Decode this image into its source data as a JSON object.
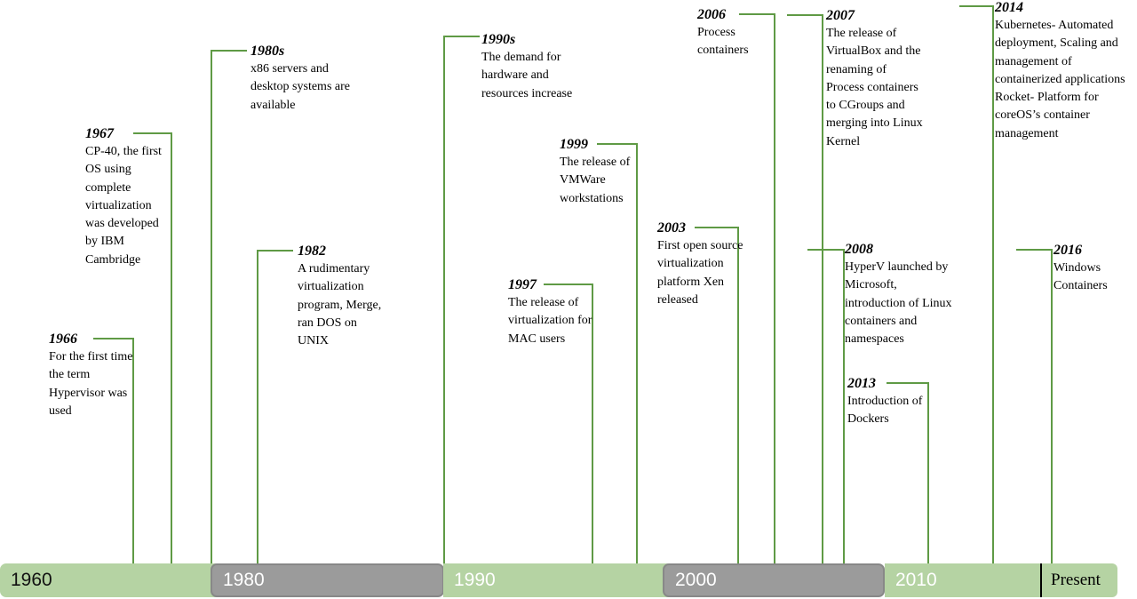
{
  "timeline": {
    "line_color": "#5f9a45",
    "bar_green": "#b5d3a3",
    "bar_gray": "#9b9b9b",
    "segments": [
      {
        "label": "1960"
      },
      {
        "label": "1980"
      },
      {
        "label": "1990"
      },
      {
        "label": "2000"
      },
      {
        "label": "2010"
      },
      {
        "label": "Present"
      }
    ]
  },
  "events": [
    {
      "year": "1966",
      "description": "For the first time the term Hypervisor was used"
    },
    {
      "year": "1967",
      "description": "CP-40, the first OS using complete virtualization was developed by IBM Cambridge"
    },
    {
      "year": "1980s",
      "description": "x86 servers and desktop systems are available"
    },
    {
      "year": "1982",
      "description": "A rudimentary virtualization program, Merge, ran DOS on UNIX"
    },
    {
      "year": "1990s",
      "description": "The demand for hardware and resources increase"
    },
    {
      "year": "1997",
      "description": "The release of virtualization for MAC users"
    },
    {
      "year": "1999",
      "description": "The release of VMWare workstations"
    },
    {
      "year": "2003",
      "description": "First open source virtualization platform Xen released"
    },
    {
      "year": "2006",
      "description": "Process containers"
    },
    {
      "year": "2007",
      "description": "The release of VirtualBox and the renaming of Process containers to CGroups and merging into Linux Kernel"
    },
    {
      "year": "2008",
      "description": "HyperV launched by Microsoft, introduction of Linux containers and namespaces"
    },
    {
      "year": "2013",
      "description": "Introduction of Dockers"
    },
    {
      "year": "2014",
      "description": "Kubernetes- Automated deployment, Scaling and management of containerized applications Rocket- Platform for coreOS’s container management"
    },
    {
      "year": "2016",
      "description": "Windows Containers"
    }
  ]
}
